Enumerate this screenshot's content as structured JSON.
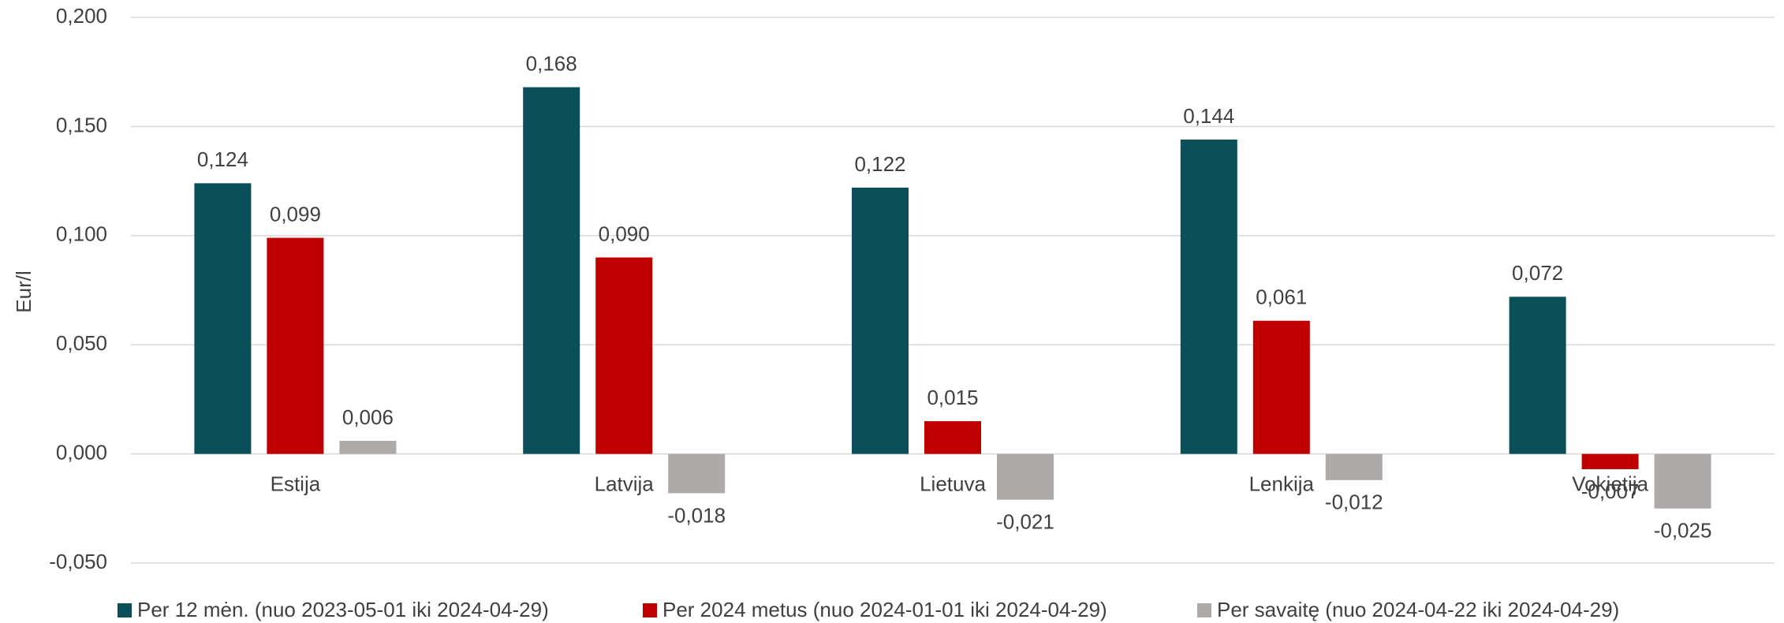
{
  "chart_data": {
    "type": "bar",
    "y_label": "Eur/l",
    "categories": [
      "Estija",
      "Latvija",
      "Lietuva",
      "Lenkija",
      "Vokietija"
    ],
    "series": [
      {
        "name": "Per 12 mėn. (nuo 2023-05-01 iki 2024-04-29)",
        "color": "#0b4f58",
        "values": [
          0.124,
          0.168,
          0.122,
          0.144,
          0.072
        ],
        "value_labels": [
          "0,124",
          "0,168",
          "0,122",
          "0,144",
          "0,072"
        ]
      },
      {
        "name": "Per 2024 metus (nuo 2024-01-01 iki 2024-04-29)",
        "color": "#c00000",
        "values": [
          0.099,
          0.09,
          0.015,
          0.061,
          -0.007
        ],
        "value_labels": [
          "0,099",
          "0,090",
          "0,015",
          "0,061",
          "-0,007"
        ]
      },
      {
        "name": "Per savaitę (nuo 2024-04-22 iki 2024-04-29)",
        "color": "#aeaaaa",
        "values": [
          0.006,
          -0.018,
          -0.021,
          -0.012,
          -0.025
        ],
        "value_labels": [
          "0,006",
          "-0,018",
          "-0,021",
          "-0,012",
          "-0,025"
        ]
      }
    ],
    "ylim": [
      -0.05,
      0.2
    ],
    "yticks": [
      {
        "value": -0.05,
        "label": "-0,050"
      },
      {
        "value": 0,
        "label": "0,000"
      },
      {
        "value": 0.05,
        "label": "0,050"
      },
      {
        "value": 0.1,
        "label": "0,100"
      },
      {
        "value": 0.15,
        "label": "0,150"
      },
      {
        "value": 0.2,
        "label": "0,200"
      }
    ],
    "grid": true,
    "legend": "bottom"
  }
}
